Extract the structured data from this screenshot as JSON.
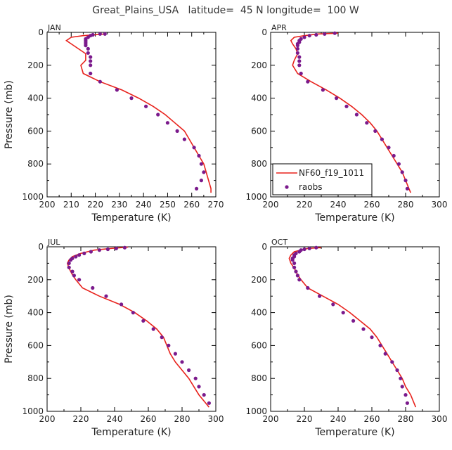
{
  "chart_data": {
    "type": "scatter",
    "title": "Great_Plains_USA   latitude=  45 N longitude=  100 W",
    "xlabel": "Temperature (K)",
    "ylabel": "Pressure (mb)",
    "legend": {
      "position": "bottom-left",
      "entries": [
        "NF60_f19_1011",
        "raobs"
      ],
      "panel": "APR"
    },
    "colors": {
      "model": "#e8221c",
      "obs": "#7b1a8c"
    },
    "panels": [
      {
        "label": "JAN",
        "xlim": [
          200,
          270
        ],
        "xticks": [
          200,
          210,
          220,
          230,
          240,
          250,
          260,
          270
        ],
        "ylim": [
          0,
          1000
        ],
        "yticks": [
          0,
          200,
          400,
          600,
          800,
          1000
        ],
        "model": [
          [
            224,
            10
          ],
          [
            215,
            20
          ],
          [
            210,
            30
          ],
          [
            208,
            50
          ],
          [
            210,
            70
          ],
          [
            213,
            100
          ],
          [
            216,
            130
          ],
          [
            216,
            170
          ],
          [
            214,
            200
          ],
          [
            215,
            250
          ],
          [
            222,
            300
          ],
          [
            231,
            350
          ],
          [
            238,
            400
          ],
          [
            244,
            450
          ],
          [
            249,
            500
          ],
          [
            253,
            550
          ],
          [
            257,
            600
          ],
          [
            259,
            650
          ],
          [
            261,
            700
          ],
          [
            263,
            750
          ],
          [
            265,
            800
          ],
          [
            266,
            850
          ],
          [
            267,
            900
          ],
          [
            268,
            950
          ],
          [
            268,
            975
          ]
        ],
        "obs": [
          [
            224,
            10
          ],
          [
            222,
            10
          ],
          [
            219,
            15
          ],
          [
            218,
            20
          ],
          [
            217,
            30
          ],
          [
            216,
            40
          ],
          [
            216,
            50
          ],
          [
            216,
            60
          ],
          [
            216,
            70
          ],
          [
            216,
            80
          ],
          [
            217,
            100
          ],
          [
            217,
            125
          ],
          [
            218,
            150
          ],
          [
            218,
            175
          ],
          [
            218,
            200
          ],
          [
            218,
            250
          ],
          [
            222,
            300
          ],
          [
            229,
            350
          ],
          [
            235,
            400
          ],
          [
            241,
            450
          ],
          [
            246,
            500
          ],
          [
            250,
            550
          ],
          [
            254,
            600
          ],
          [
            257,
            650
          ],
          [
            261,
            700
          ],
          [
            263,
            750
          ],
          [
            264,
            800
          ],
          [
            265,
            850
          ],
          [
            264,
            900
          ],
          [
            262,
            950
          ]
        ]
      },
      {
        "label": "APR",
        "xlim": [
          200,
          300
        ],
        "xticks": [
          200,
          220,
          240,
          260,
          280,
          300
        ],
        "ylim": [
          0,
          1000
        ],
        "yticks": [
          0,
          200,
          400,
          600,
          800,
          1000
        ],
        "model": [
          [
            240,
            5
          ],
          [
            228,
            10
          ],
          [
            220,
            20
          ],
          [
            214,
            30
          ],
          [
            212,
            50
          ],
          [
            213,
            70
          ],
          [
            215,
            100
          ],
          [
            216,
            130
          ],
          [
            214,
            170
          ],
          [
            213,
            200
          ],
          [
            216,
            250
          ],
          [
            224,
            300
          ],
          [
            233,
            350
          ],
          [
            241,
            400
          ],
          [
            248,
            450
          ],
          [
            254,
            500
          ],
          [
            259,
            550
          ],
          [
            263,
            600
          ],
          [
            266,
            650
          ],
          [
            269,
            700
          ],
          [
            272,
            750
          ],
          [
            275,
            800
          ],
          [
            278,
            850
          ],
          [
            280,
            900
          ],
          [
            282,
            950
          ],
          [
            283,
            975
          ]
        ],
        "obs": [
          [
            238,
            5
          ],
          [
            232,
            10
          ],
          [
            227,
            15
          ],
          [
            223,
            20
          ],
          [
            220,
            30
          ],
          [
            218,
            40
          ],
          [
            217,
            50
          ],
          [
            217,
            60
          ],
          [
            216,
            70
          ],
          [
            216,
            80
          ],
          [
            216,
            100
          ],
          [
            216,
            125
          ],
          [
            217,
            150
          ],
          [
            217,
            175
          ],
          [
            217,
            200
          ],
          [
            218,
            250
          ],
          [
            222,
            300
          ],
          [
            231,
            350
          ],
          [
            239,
            400
          ],
          [
            245,
            450
          ],
          [
            251,
            500
          ],
          [
            257,
            550
          ],
          [
            262,
            600
          ],
          [
            266,
            650
          ],
          [
            270,
            700
          ],
          [
            273,
            750
          ],
          [
            276,
            800
          ],
          [
            278,
            850
          ],
          [
            280,
            900
          ],
          [
            281,
            950
          ]
        ]
      },
      {
        "label": "JUL",
        "xlim": [
          200,
          300
        ],
        "xticks": [
          200,
          220,
          240,
          260,
          280,
          300
        ],
        "ylim": [
          0,
          1000
        ],
        "yticks": [
          0,
          200,
          400,
          600,
          800,
          1000
        ],
        "model": [
          [
            248,
            2
          ],
          [
            238,
            10
          ],
          [
            228,
            20
          ],
          [
            220,
            40
          ],
          [
            215,
            60
          ],
          [
            213,
            80
          ],
          [
            212,
            100
          ],
          [
            213,
            130
          ],
          [
            215,
            170
          ],
          [
            217,
            200
          ],
          [
            221,
            250
          ],
          [
            231,
            300
          ],
          [
            243,
            350
          ],
          [
            252,
            400
          ],
          [
            259,
            450
          ],
          [
            265,
            500
          ],
          [
            269,
            550
          ],
          [
            271,
            600
          ],
          [
            273,
            650
          ],
          [
            276,
            700
          ],
          [
            280,
            750
          ],
          [
            284,
            800
          ],
          [
            287,
            850
          ],
          [
            290,
            900
          ],
          [
            294,
            950
          ],
          [
            296,
            975
          ]
        ],
        "obs": [
          [
            246,
            5
          ],
          [
            241,
            10
          ],
          [
            236,
            15
          ],
          [
            231,
            20
          ],
          [
            226,
            30
          ],
          [
            222,
            40
          ],
          [
            219,
            50
          ],
          [
            217,
            60
          ],
          [
            215,
            70
          ],
          [
            214,
            80
          ],
          [
            213,
            100
          ],
          [
            213,
            125
          ],
          [
            215,
            150
          ],
          [
            216,
            175
          ],
          [
            219,
            200
          ],
          [
            227,
            250
          ],
          [
            235,
            300
          ],
          [
            244,
            350
          ],
          [
            251,
            400
          ],
          [
            257,
            450
          ],
          [
            263,
            500
          ],
          [
            268,
            550
          ],
          [
            272,
            600
          ],
          [
            276,
            650
          ],
          [
            280,
            700
          ],
          [
            284,
            750
          ],
          [
            288,
            800
          ],
          [
            290,
            850
          ],
          [
            293,
            900
          ],
          [
            296,
            950
          ]
        ]
      },
      {
        "label": "OCT",
        "xlim": [
          200,
          300
        ],
        "xticks": [
          200,
          220,
          240,
          260,
          280,
          300
        ],
        "ylim": [
          0,
          1000
        ],
        "yticks": [
          0,
          200,
          400,
          600,
          800,
          1000
        ],
        "model": [
          [
            230,
            5
          ],
          [
            222,
            10
          ],
          [
            218,
            20
          ],
          [
            214,
            30
          ],
          [
            212,
            50
          ],
          [
            211,
            70
          ],
          [
            212,
            100
          ],
          [
            214,
            130
          ],
          [
            216,
            170
          ],
          [
            218,
            200
          ],
          [
            222,
            250
          ],
          [
            231,
            300
          ],
          [
            240,
            350
          ],
          [
            247,
            400
          ],
          [
            253,
            450
          ],
          [
            259,
            500
          ],
          [
            263,
            550
          ],
          [
            266,
            600
          ],
          [
            269,
            650
          ],
          [
            272,
            700
          ],
          [
            275,
            750
          ],
          [
            278,
            800
          ],
          [
            280,
            850
          ],
          [
            283,
            900
          ],
          [
            285,
            950
          ],
          [
            286,
            975
          ]
        ],
        "obs": [
          [
            227,
            5
          ],
          [
            223,
            10
          ],
          [
            220,
            15
          ],
          [
            218,
            20
          ],
          [
            217,
            30
          ],
          [
            215,
            40
          ],
          [
            214,
            50
          ],
          [
            214,
            60
          ],
          [
            213,
            70
          ],
          [
            213,
            80
          ],
          [
            214,
            100
          ],
          [
            214,
            125
          ],
          [
            215,
            150
          ],
          [
            216,
            175
          ],
          [
            217,
            200
          ],
          [
            222,
            250
          ],
          [
            229,
            300
          ],
          [
            237,
            350
          ],
          [
            243,
            400
          ],
          [
            249,
            450
          ],
          [
            255,
            500
          ],
          [
            260,
            550
          ],
          [
            265,
            600
          ],
          [
            268,
            650
          ],
          [
            272,
            700
          ],
          [
            275,
            750
          ],
          [
            277,
            800
          ],
          [
            278,
            850
          ],
          [
            280,
            900
          ],
          [
            281,
            950
          ]
        ]
      }
    ]
  }
}
